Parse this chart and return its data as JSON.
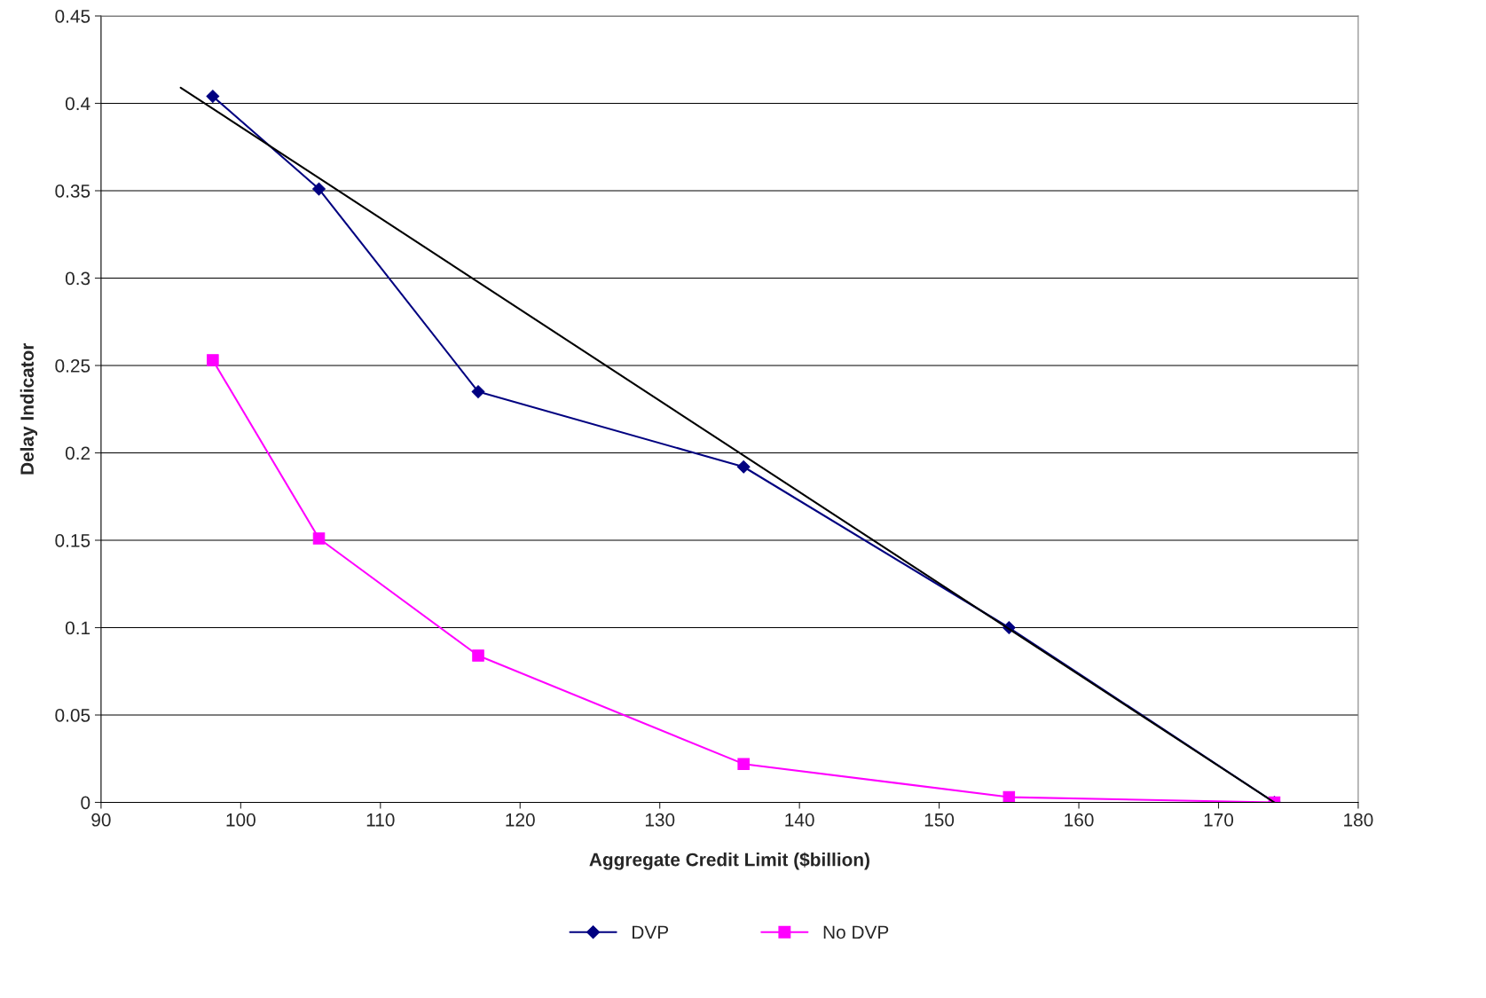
{
  "chart_data": {
    "type": "line",
    "xlabel": "Aggregate Credit Limit ($billion)",
    "ylabel": "Delay Indicator",
    "xlim": [
      90,
      180
    ],
    "xticks": [
      90,
      100,
      110,
      120,
      130,
      140,
      150,
      160,
      170,
      180
    ],
    "ylim": [
      0,
      0.45
    ],
    "yticks": [
      0,
      0.05,
      0.1,
      0.15,
      0.2,
      0.25,
      0.3,
      0.35,
      0.4,
      0.45
    ],
    "grid": "y",
    "legend": "bottom",
    "series": [
      {
        "name": "DVP",
        "color": "#000080",
        "marker": "diamond",
        "x": [
          98,
          105.6,
          117,
          136,
          155,
          174
        ],
        "values": [
          0.404,
          0.351,
          0.235,
          0.192,
          0.1,
          0
        ]
      },
      {
        "name": "No DVP",
        "color": "#ff00ff",
        "marker": "square",
        "x": [
          98,
          105.6,
          117,
          136,
          155,
          174
        ],
        "values": [
          0.253,
          0.151,
          0.084,
          0.022,
          0.003,
          0
        ]
      },
      {
        "type": "line",
        "color": "#000000",
        "marker": "none",
        "x": [
          95.7,
          174
        ],
        "values": [
          0.409,
          0
        ]
      }
    ]
  }
}
